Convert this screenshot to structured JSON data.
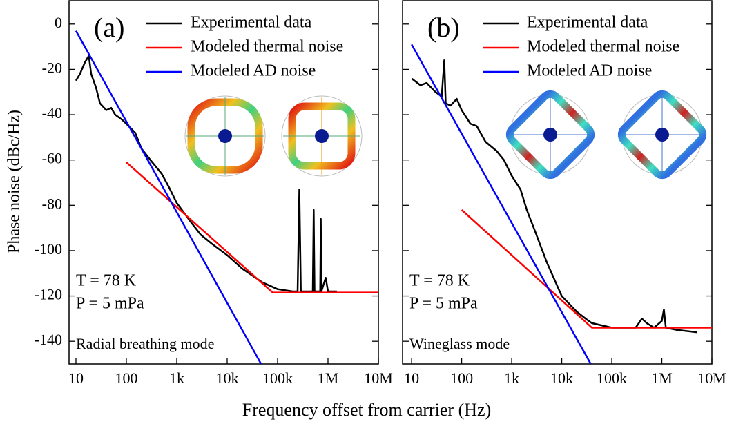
{
  "xlabel": "Frequency offset from carrier (Hz)",
  "ylabel": "Phase noise (dBc/Hz)",
  "chart_data": [
    {
      "type": "line",
      "panel_label": "(a)",
      "xscale": "log",
      "annotations": [
        "T = 78 K",
        "P =  5 mPa",
        "Radial breathing mode"
      ],
      "xlim": [
        7.3,
        10000000
      ],
      "ylim": [
        -150,
        10.3
      ],
      "xticks": [
        10,
        100,
        {
          "value": 1000,
          "label": "1k"
        },
        {
          "value": 10000,
          "label": "10k"
        },
        {
          "value": 100000,
          "label": "100k"
        },
        {
          "value": 1000000,
          "label": "1M"
        },
        {
          "value": 10000000,
          "label": "10M"
        }
      ],
      "yticks": [
        0,
        -20,
        -40,
        -60,
        -80,
        -100,
        -120,
        -140
      ],
      "legend": "top-right",
      "series": [
        {
          "name": "Experimental data",
          "color": "#000000",
          "x": [
            10,
            12,
            15,
            18,
            20,
            25,
            30,
            40,
            50,
            60,
            80,
            100,
            150,
            200,
            300,
            500,
            700,
            1000,
            2000,
            3000,
            5000,
            10000,
            20000,
            50000,
            100000,
            200000,
            250000,
            270000,
            290000,
            500000,
            520000,
            540000,
            700000,
            720000,
            740000,
            900000,
            1000000,
            1500000
          ],
          "values": [
            -25,
            -22,
            -17,
            -14,
            -22,
            -28,
            -35,
            -38,
            -37,
            -40,
            -42,
            -44,
            -48,
            -55,
            -60,
            -66,
            -72,
            -79,
            -88,
            -93,
            -97,
            -102,
            -108,
            -114,
            -117,
            -118,
            -118,
            -73,
            -118,
            -118,
            -82,
            -118,
            -118,
            -86,
            -118,
            -112,
            -118,
            -118
          ]
        },
        {
          "name": "Modeled thermal noise",
          "color": "#ff0000",
          "x": [
            100,
            80000,
            10000000
          ],
          "values": [
            -61,
            -118.5,
            -118.5
          ]
        },
        {
          "name": "Modeled AD noise",
          "color": "#0000ff",
          "x": [
            10,
            47000
          ],
          "values": [
            -3,
            -150
          ]
        }
      ]
    },
    {
      "type": "line",
      "panel_label": "(b)",
      "xscale": "log",
      "annotations": [
        "T = 78 K",
        "P =  5 mPa",
        "Wineglass mode"
      ],
      "xlim": [
        6.6,
        10000000
      ],
      "ylim": [
        -150,
        10.3
      ],
      "xticks": [
        10,
        100,
        {
          "value": 1000,
          "label": "1k"
        },
        {
          "value": 10000,
          "label": "10k"
        },
        {
          "value": 100000,
          "label": "100k"
        },
        {
          "value": 1000000,
          "label": "1M"
        },
        {
          "value": 10000000,
          "label": "10M"
        }
      ],
      "yticks": [
        0,
        -20,
        -40,
        -60,
        -80,
        -100,
        -120,
        -140
      ],
      "legend": "top-right",
      "series": [
        {
          "name": "Experimental data",
          "color": "#000000",
          "x": [
            10,
            15,
            20,
            30,
            40,
            45,
            48,
            60,
            80,
            100,
            150,
            200,
            300,
            500,
            700,
            1000,
            1500,
            2000,
            3000,
            5000,
            10000,
            20000,
            30000,
            40000,
            100000,
            300000,
            400000,
            500000,
            700000,
            1000000,
            1100000,
            1200000,
            2000000,
            5000000
          ],
          "values": [
            -24,
            -27,
            -26,
            -30,
            -32,
            -16,
            -35,
            -36,
            -33,
            -38,
            -44,
            -45,
            -52,
            -56,
            -60,
            -67,
            -73,
            -82,
            -92,
            -105,
            -120,
            -127,
            -130,
            -132,
            -134,
            -134,
            -130,
            -132,
            -134,
            -131,
            -126,
            -134,
            -135,
            -136
          ]
        },
        {
          "name": "Modeled thermal noise",
          "color": "#ff0000",
          "x": [
            100,
            40000,
            10000000
          ],
          "values": [
            -82,
            -134,
            -134
          ]
        },
        {
          "name": "Modeled AD noise",
          "color": "#0000ff",
          "x": [
            10,
            38000
          ],
          "values": [
            -9,
            -150
          ]
        }
      ]
    }
  ]
}
